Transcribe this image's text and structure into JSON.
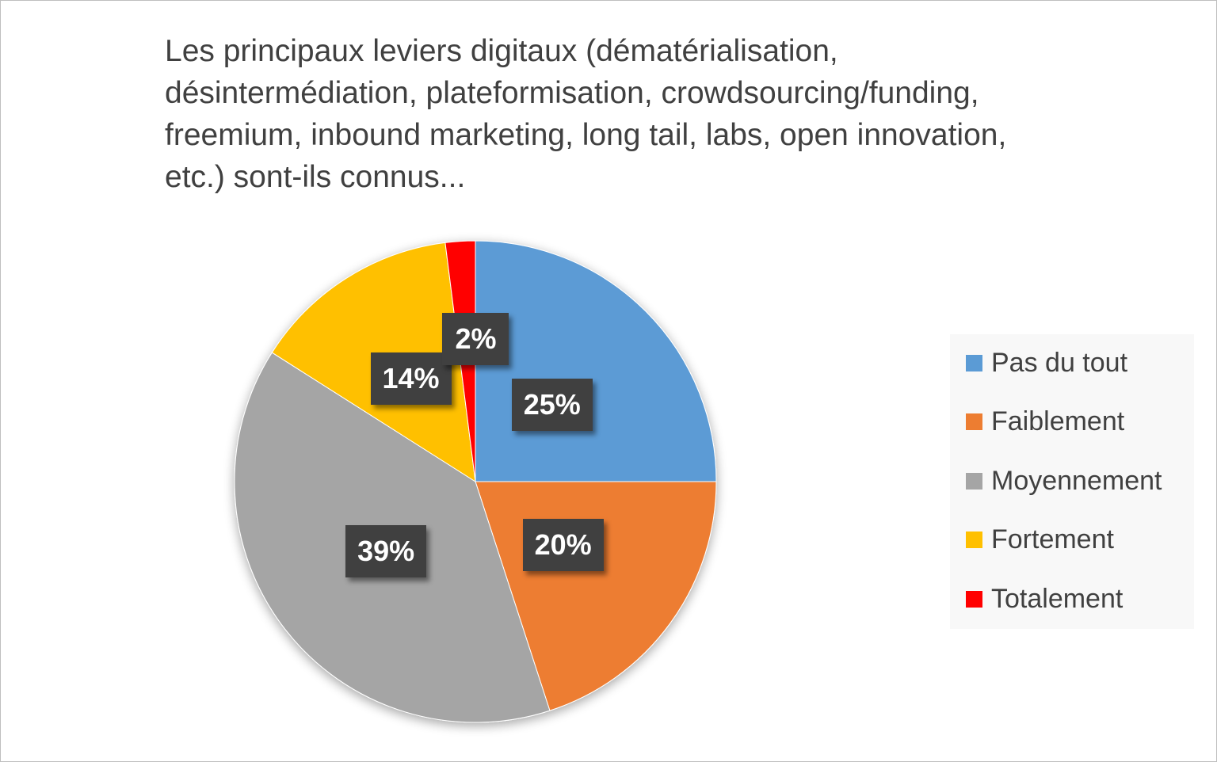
{
  "chart_data": {
    "type": "pie",
    "title": "Les principaux leviers digitaux (dématérialisation,\ndésintermédiation, plateformisation, crowdsourcing/funding,\nfreemium, inbound marketing, long tail, labs, open innovation,\netc.) sont-ils connus...",
    "categories": [
      "Pas du tout",
      "Faiblement",
      "Moyennement",
      "Fortement",
      "Totalement"
    ],
    "values": [
      25,
      20,
      39,
      14,
      2
    ],
    "data_labels": [
      "25%",
      "20%",
      "39%",
      "14%",
      "2%"
    ],
    "colors": [
      "#5b9bd5",
      "#ed7d31",
      "#a5a5a5",
      "#ffc000",
      "#ff0000"
    ],
    "start_angle_deg": 0,
    "direction": "clockwise",
    "legend_position": "right"
  }
}
